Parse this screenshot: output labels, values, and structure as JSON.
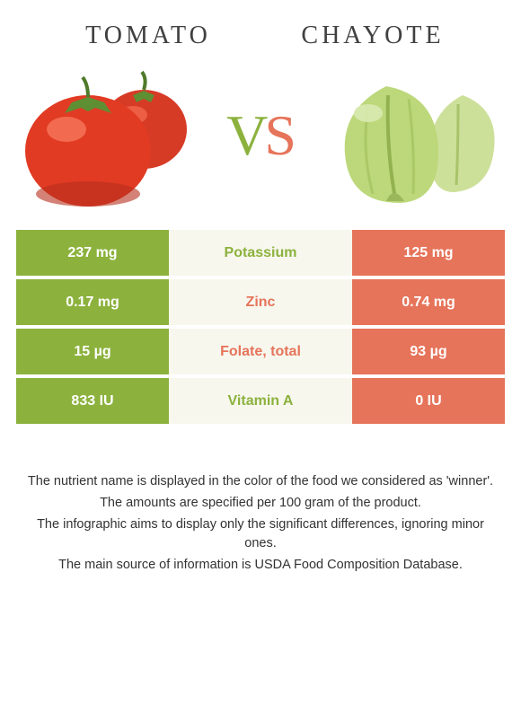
{
  "colors": {
    "tomato": "#e6745a",
    "chayote": "#8cb23d",
    "mid_bg": "#f7f7ee",
    "title": "#404040",
    "note": "#333333"
  },
  "header": {
    "left_title": "Tomato",
    "right_title": "Chayote",
    "vs_v": "V",
    "vs_s": "S"
  },
  "table": {
    "rows": [
      {
        "left": "237 mg",
        "mid": "Potassium",
        "right": "125 mg",
        "winner": "left"
      },
      {
        "left": "0.17 mg",
        "mid": "Zinc",
        "right": "0.74 mg",
        "winner": "right"
      },
      {
        "left": "15 µg",
        "mid": "Folate, total",
        "right": "93 µg",
        "winner": "right"
      },
      {
        "left": "833 IU",
        "mid": "Vitamin A",
        "right": "0 IU",
        "winner": "left"
      }
    ]
  },
  "notes": {
    "line1": "The nutrient name is displayed in the color of the food we considered as 'winner'.",
    "line2": "The amounts are specified per 100 gram of the product.",
    "line3": "The infographic aims to display only the significant differences, ignoring minor ones.",
    "line4": "The main source of information is USDA Food Composition Database."
  }
}
